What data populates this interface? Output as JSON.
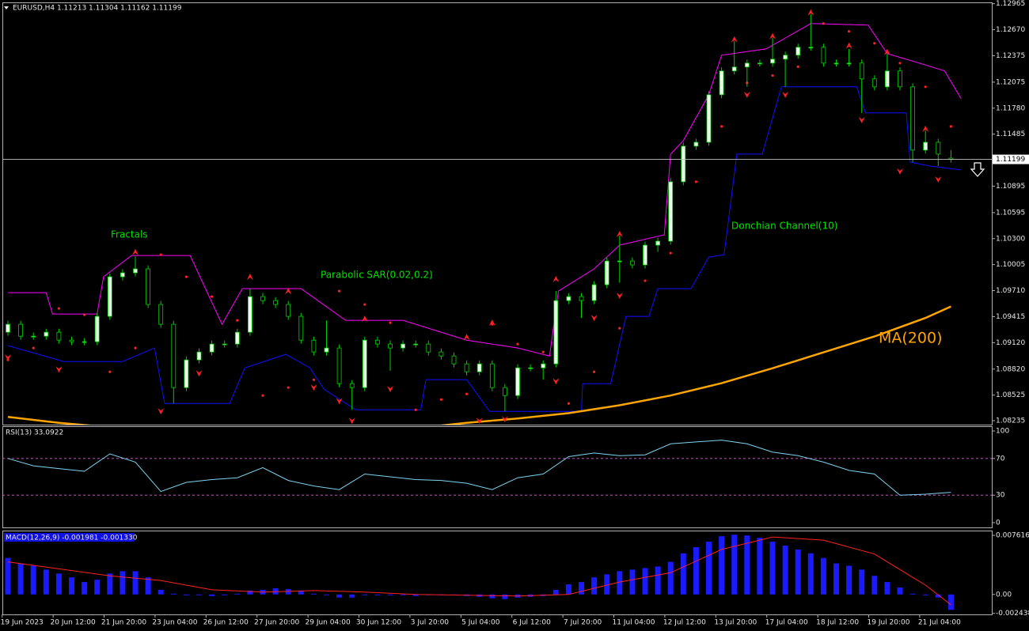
{
  "chart_data": [
    {
      "type": "candlestick",
      "title": "EURUSD,H4  1.11213 1.11304 1.11162 1.11199",
      "ylim": [
        1.0819,
        1.1298
      ],
      "yticks": [
        1.12965,
        {
          "value": 1.1267,
          "label": "1.12670"
        },
        1.12375,
        1.12075,
        {
          "value": 1.1178,
          "label": "1.11780"
        },
        1.11485,
        {
          "value": 1.10895,
          "label": "1.10895"
        },
        1.10595,
        {
          "value": 1.103,
          "label": "1.10300"
        },
        1.10005,
        {
          "value": 1.0971,
          "label": "1.09710"
        },
        1.09415,
        {
          "value": 1.0912,
          "label": "1.09120"
        },
        {
          "value": 1.0882,
          "label": "1.08820"
        },
        1.08525,
        1.08235
      ],
      "current_price": 1.11199,
      "up_color": "#e8ffe8",
      "down_color": "#000000",
      "candle_line_color": "#00d000",
      "candles": [
        [
          1.09238,
          1.09368,
          1.09198,
          1.09328
        ],
        [
          1.09328,
          1.09368,
          1.09153,
          1.09193
        ],
        [
          1.09193,
          1.09233,
          1.09153,
          1.09193
        ],
        [
          1.09193,
          1.09278,
          1.09153,
          1.09238
        ],
        [
          1.09238,
          1.09278,
          1.09108,
          1.09148
        ],
        [
          1.09148,
          1.09188,
          1.09091,
          1.09131
        ],
        [
          1.09131,
          1.09171,
          1.09091,
          1.09131
        ],
        [
          1.09131,
          1.09458,
          1.09091,
          1.09418
        ],
        [
          1.09418,
          1.09907,
          1.09378,
          1.09867
        ],
        [
          1.09867,
          1.09952,
          1.09827,
          1.09912
        ],
        [
          1.09912,
          1.10097,
          1.09872,
          1.09957
        ],
        [
          1.09957,
          1.09997,
          1.09513,
          1.09553
        ],
        [
          1.09553,
          1.09593,
          1.09288,
          1.09328
        ],
        [
          1.09328,
          1.09368,
          1.0843,
          1.0861
        ],
        [
          1.0861,
          1.08964,
          1.0857,
          1.08924
        ],
        [
          1.08924,
          1.09054,
          1.08884,
          1.09014
        ],
        [
          1.09014,
          1.09144,
          1.08974,
          1.09104
        ],
        [
          1.09104,
          1.09144,
          1.09064,
          1.09104
        ],
        [
          1.09104,
          1.09278,
          1.09064,
          1.09238
        ],
        [
          1.09238,
          1.09733,
          1.09198,
          1.09642
        ],
        [
          1.09642,
          1.09682,
          1.09557,
          1.09597
        ],
        [
          1.09597,
          1.09637,
          1.09513,
          1.09553
        ],
        [
          1.09553,
          1.09593,
          1.09378,
          1.09418
        ],
        [
          1.09418,
          1.09458,
          1.09108,
          1.09148
        ],
        [
          1.09148,
          1.09188,
          1.08974,
          1.09014
        ],
        [
          1.09014,
          1.09373,
          1.08974,
          1.09059
        ],
        [
          1.09059,
          1.09099,
          1.08615,
          1.08655
        ],
        [
          1.08655,
          1.08695,
          1.08358,
          1.0861
        ],
        [
          1.0861,
          1.09188,
          1.0857,
          1.09148
        ],
        [
          1.09148,
          1.09188,
          1.09064,
          1.09104
        ],
        [
          1.09104,
          1.09144,
          1.088,
          1.09059
        ],
        [
          1.09059,
          1.09144,
          1.09019,
          1.09104
        ],
        [
          1.09104,
          1.09144,
          1.09064,
          1.09104
        ],
        [
          1.09104,
          1.09144,
          1.08974,
          1.09014
        ],
        [
          1.09014,
          1.09054,
          1.08929,
          1.08969
        ],
        [
          1.08969,
          1.09009,
          1.08839,
          1.08879
        ],
        [
          1.08879,
          1.08919,
          1.08749,
          1.08789
        ],
        [
          1.08789,
          1.08919,
          1.08749,
          1.08879
        ],
        [
          1.08879,
          1.08919,
          1.0857,
          1.0861
        ],
        [
          1.0861,
          1.0865,
          1.0834,
          1.0852
        ],
        [
          1.0852,
          1.08874,
          1.0848,
          1.08834
        ],
        [
          1.08834,
          1.08874,
          1.08794,
          1.08834
        ],
        [
          1.08834,
          1.08919,
          1.087,
          1.08879
        ],
        [
          1.08879,
          1.09705,
          1.08839,
          1.09597
        ],
        [
          1.09597,
          1.09682,
          1.09557,
          1.09642
        ],
        [
          1.09642,
          1.09682,
          1.094,
          1.09597
        ],
        [
          1.09597,
          1.09817,
          1.09557,
          1.09777
        ],
        [
          1.09777,
          1.10086,
          1.09737,
          1.10046
        ],
        [
          1.10046,
          1.10334,
          1.098,
          1.10046
        ],
        [
          1.10046,
          1.10086,
          1.09962,
          1.10002
        ],
        [
          1.10002,
          1.10266,
          1.09962,
          1.10226
        ],
        [
          1.10226,
          1.10311,
          1.1015,
          1.10271
        ],
        [
          1.10271,
          1.10985,
          1.10231,
          1.10945
        ],
        [
          1.10945,
          1.11389,
          1.10905,
          1.11349
        ],
        [
          1.11349,
          1.11433,
          1.11309,
          1.11393
        ],
        [
          1.11393,
          1.11972,
          1.11353,
          1.11932
        ],
        [
          1.11932,
          1.12242,
          1.11892,
          1.12202
        ],
        [
          1.12202,
          1.12543,
          1.12162,
          1.12247
        ],
        [
          1.12247,
          1.12331,
          1.12022,
          1.12291
        ],
        [
          1.12291,
          1.12331,
          1.12251,
          1.12291
        ],
        [
          1.12291,
          1.12579,
          1.12251,
          1.12336
        ],
        [
          1.12336,
          1.12421,
          1.12022,
          1.12381
        ],
        [
          1.12381,
          1.12511,
          1.12341,
          1.12471
        ],
        [
          1.12471,
          1.12848,
          1.12431,
          1.12471
        ],
        [
          1.12471,
          1.12511,
          1.12251,
          1.12291
        ],
        [
          1.12291,
          1.12331,
          1.12251,
          1.12291
        ],
        [
          1.12291,
          1.12451,
          1.12251,
          1.12291
        ],
        [
          1.12291,
          1.12331,
          1.11726,
          1.12112
        ],
        [
          1.12112,
          1.12152,
          1.11982,
          1.12022
        ],
        [
          1.12022,
          1.12399,
          1.11982,
          1.12202
        ],
        [
          1.12202,
          1.12242,
          1.11982,
          1.12022
        ],
        [
          1.12022,
          1.12062,
          1.11169,
          1.11304
        ],
        [
          1.11304,
          1.11528,
          1.11264,
          1.11393
        ],
        [
          1.11393,
          1.11433,
          1.11124,
          1.11259
        ],
        [
          1.11213,
          1.11304,
          1.11162,
          1.11199
        ]
      ],
      "indicators": [
        {
          "name": "Donchian Channel(10)",
          "type": "band",
          "label_color": "#00e000",
          "upper_color": "#ff00ff",
          "lower_color": "#1010ff",
          "upper": {
            "x": [
              0,
              3,
              3.5,
              7,
              7.5,
              9.7,
              14.3,
              16.8,
              18.4,
              23,
              26.5,
              31,
              36,
              40,
              42.5,
              43.2,
              46,
              48,
              51.5,
              52,
              53,
              55,
              56,
              59.5,
              63,
              67.5,
              69,
              71.5,
              73.5,
              74.8
            ],
            "values": [
              1.09687,
              1.09687,
              1.09445,
              1.09445,
              1.09867,
              1.10109,
              1.10109,
              1.09328,
              1.09733,
              1.09733,
              1.09373,
              1.09373,
              1.09148,
              1.09059,
              1.08969,
              1.09705,
              1.09957,
              1.10226,
              1.10343,
              1.11259,
              1.11412,
              1.11932,
              1.12381,
              1.12453,
              1.1274,
              1.12723,
              1.12399,
              1.12291,
              1.12202,
              1.11887
            ]
          },
          "lower": {
            "x": [
              0,
              4.4,
              9,
              11.5,
              12.3,
              17.4,
              18.6,
              21.8,
              23.7,
              24.8,
              27.3,
              32.4,
              32.8,
              36,
              37.8,
              45,
              45.1,
              47.3,
              48.5,
              50.3,
              51,
              53.6,
              55,
              56.2,
              57.2,
              59.2,
              60.7,
              66.6,
              67.3,
              70.5,
              70.8,
              72.3,
              74.8
            ],
            "values": [
              1.09086,
              1.08906,
              1.08906,
              1.09059,
              1.0843,
              1.0843,
              1.08834,
              1.08987,
              1.08834,
              1.08592,
              1.08358,
              1.08358,
              1.087,
              1.087,
              1.0834,
              1.0834,
              1.08655,
              1.08655,
              1.09418,
              1.09418,
              1.09733,
              1.09733,
              1.10091,
              1.10118,
              1.11259,
              1.11259,
              1.12022,
              1.12022,
              1.11726,
              1.11726,
              1.11169,
              1.11124,
              1.11079
            ]
          }
        },
        {
          "name": "Parabolic SAR(0.02,0.2)",
          "type": "dots",
          "label_color": "#00e000",
          "color": "#ff2020",
          "x": [
            0,
            2,
            4,
            6,
            8,
            10,
            12,
            14,
            16,
            18,
            20,
            22,
            24,
            26,
            28,
            30,
            32,
            34,
            36,
            38,
            40,
            42,
            44,
            46,
            48,
            50,
            52,
            54,
            56,
            58,
            60,
            62,
            64,
            66,
            68,
            70,
            72,
            74
          ],
          "values": [
            1.08924,
            1.09059,
            1.09508,
            1.09436,
            1.08789,
            1.09059,
            1.10118,
            1.09867,
            1.09642,
            1.09373,
            1.0852,
            1.0861,
            1.08699,
            1.09705,
            1.09553,
            1.09346,
            1.08358,
            1.08475,
            1.08538,
            1.09328,
            1.09104,
            1.09014,
            1.0843,
            1.08789,
            1.09283,
            1.09822,
            1.10136,
            1.10945,
            1.11573,
            1.12067,
            1.1215,
            1.1225,
            1.1274,
            1.12651,
            1.12516,
            1.12291,
            1.12022,
            1.11573
          ]
        },
        {
          "name": "MA(200)",
          "type": "line",
          "label_color": "#ffa500",
          "color": "#ffa500",
          "x": [
            0,
            4,
            8,
            20,
            32,
            36,
            40,
            44,
            48,
            52,
            56,
            60,
            64,
            68,
            72,
            74
          ],
          "values": [
            1.08277,
            1.0821,
            1.0816,
            1.0812,
            1.0815,
            1.0821,
            1.0826,
            1.0832,
            1.0841,
            1.0852,
            1.0866,
            1.0883,
            1.0901,
            1.0919,
            1.094,
            1.0953
          ]
        },
        {
          "name": "Fractals",
          "type": "fractals",
          "label_color": "#00e000",
          "color": "#ff2020",
          "up": {
            "x": [
              10,
              19,
              22,
              28,
              36,
              38,
              43,
              48,
              57,
              60,
              63,
              66,
              69,
              72
            ],
            "values": [
              1.1013,
              1.09849,
              1.09687,
              1.09373,
              1.09166,
              1.09328,
              1.09822,
              1.10334,
              1.12543,
              1.12579,
              1.12848,
              1.12471,
              1.12399,
              1.11528
            ]
          },
          "down": {
            "x": [
              0,
              4,
              12,
              15,
              24,
              26,
              27,
              30,
              37,
              39,
              43,
              46,
              48,
              58,
              61,
              67,
              70,
              73
            ],
            "values": [
              1.08969,
              1.08834,
              1.08358,
              1.08789,
              1.08628,
              1.08475,
              1.0825,
              1.0861,
              1.0825,
              1.08268,
              1.08699,
              1.09418,
              1.0967,
              1.1195,
              1.1195,
              1.11663,
              1.11079,
              1.10989
            ]
          }
        }
      ]
    },
    {
      "type": "line",
      "title": "RSI(13) 33.0922",
      "color": "#7fd4f0",
      "level_color": "#ff40ff",
      "ylim": [
        -5.2,
        105.2
      ],
      "yticks": [
        0,
        30,
        70,
        100
      ],
      "levels": [
        30,
        70
      ],
      "x": [
        0,
        2,
        4,
        6,
        8,
        10,
        12,
        14,
        16,
        18,
        20,
        22,
        24,
        26,
        28,
        30,
        32,
        34,
        36,
        38,
        40,
        42,
        44,
        46,
        48,
        50,
        52,
        54,
        56,
        58,
        60,
        62,
        64,
        66,
        68,
        70,
        72,
        74
      ],
      "values": [
        70,
        62,
        59,
        56,
        75,
        66,
        34,
        44,
        47,
        49,
        60,
        46,
        40,
        36,
        53,
        50,
        47,
        46,
        43,
        36,
        49,
        53,
        72,
        76,
        73,
        74,
        86,
        88,
        90,
        86,
        77,
        73,
        66,
        57,
        53,
        30,
        31,
        33.0922
      ]
    },
    {
      "type": "bar",
      "title": "MACD(12,26,9) -0.001981 -0.001330",
      "color": "#1a1aff",
      "ylim": [
        -0.00257,
        0.00823
      ],
      "yticks": [
        0.007616,
        {
          "value": 0,
          "label": "0.00"
        },
        -0.002438
      ],
      "values": [
        0.0047,
        0.004,
        0.0037,
        0.0032,
        0.0027,
        0.0022,
        0.0016,
        0.0019,
        0.0027,
        0.003,
        0.003,
        0.0022,
        0.0006,
        0.0001,
        -0.0001,
        -0.0001,
        -0.0002,
        -0.0001,
        0.0001,
        0.0005,
        0.0006,
        0.0008,
        0.0007,
        0.0005,
        0.0001,
        -0.0001,
        -0.0004,
        -0.0004,
        -0.0001,
        -0.0001,
        -0.0001,
        -0.0001,
        -0.0002,
        -0.0001,
        -0.0001,
        -0.0001,
        -0.0002,
        -0.0003,
        -0.0005,
        -0.0006,
        -0.0004,
        -0.0003,
        -0.0002,
        0.0006,
        0.0013,
        0.0016,
        0.0022,
        0.0026,
        0.003,
        0.0032,
        0.0034,
        0.0036,
        0.0042,
        0.0053,
        0.0061,
        0.0068,
        0.0075,
        0.0077,
        0.0076,
        0.0073,
        0.0068,
        0.0063,
        0.0058,
        0.0053,
        0.0047,
        0.004,
        0.0037,
        0.0032,
        0.0024,
        0.0016,
        0.0009,
        0.0001,
        -0.0001,
        -0.0004,
        -0.001981
      ],
      "signal": {
        "color": "#ff2020",
        "x": [
          0,
          4,
          8,
          12,
          16,
          20,
          24,
          28,
          32,
          36,
          40,
          44,
          48,
          52,
          56,
          60,
          64,
          68,
          72,
          74
        ],
        "values": [
          0.0042,
          0.0033,
          0.0024,
          0.0018,
          0.0006,
          0.0003,
          0.0005,
          0.0003,
          0,
          -0.0001,
          -0.0002,
          0,
          0.0016,
          0.0028,
          0.0058,
          0.0074,
          0.007,
          0.0052,
          0.0012,
          -0.00133
        ]
      },
      "x_labels": [
        "19 Jun 2023",
        "20 Jun 12:00",
        "21 Jun 20:00",
        "23 Jun 04:00",
        "26 Jun 12:00",
        "27 Jun 20:00",
        "29 Jun 04:00",
        "30 Jun 12:00",
        "3 Jul 20:00",
        "5 Jul 04:00",
        "6 Jul 12:00",
        "7 Jul 20:00",
        "11 Jul 04:00",
        "12 Jul 12:00",
        "13 Jul 20:00",
        "17 Jul 04:00",
        "18 Jul 12:00",
        "19 Jul 20:00",
        "21 Jul 04:00"
      ]
    }
  ]
}
